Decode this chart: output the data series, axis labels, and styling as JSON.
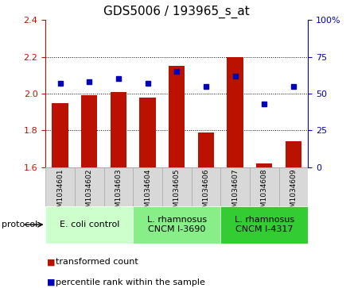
{
  "title": "GDS5006 / 193965_s_at",
  "samples": [
    "GSM1034601",
    "GSM1034602",
    "GSM1034603",
    "GSM1034604",
    "GSM1034605",
    "GSM1034606",
    "GSM1034607",
    "GSM1034608",
    "GSM1034609"
  ],
  "transformed_counts": [
    1.95,
    1.99,
    2.01,
    1.98,
    2.15,
    1.79,
    2.2,
    1.62,
    1.74
  ],
  "percentile_ranks": [
    57,
    58,
    60,
    57,
    65,
    55,
    62,
    43,
    55
  ],
  "ylim_left": [
    1.6,
    2.4
  ],
  "ylim_right": [
    0,
    100
  ],
  "yticks_left": [
    1.6,
    1.8,
    2.0,
    2.2,
    2.4
  ],
  "yticks_right": [
    0,
    25,
    50,
    75,
    100
  ],
  "ytick_labels_right": [
    "0",
    "25",
    "50",
    "75",
    "100%"
  ],
  "bar_color": "#bb1100",
  "dot_color": "#0000bb",
  "bar_bottom": 1.6,
  "groups": [
    {
      "label": "E. coli control",
      "start": 0,
      "end": 3,
      "color": "#ccffcc"
    },
    {
      "label": "L. rhamnosus\nCNCM I-3690",
      "start": 3,
      "end": 6,
      "color": "#88ee88"
    },
    {
      "label": "L. rhamnosus\nCNCM I-4317",
      "start": 6,
      "end": 9,
      "color": "#33cc33"
    }
  ],
  "protocol_label": "protocol",
  "legend_items": [
    {
      "label": "transformed count",
      "color": "#bb1100"
    },
    {
      "label": "percentile rank within the sample",
      "color": "#0000bb"
    }
  ],
  "sample_box_color": "#d8d8d8",
  "sample_box_edge": "#aaaaaa",
  "title_fontsize": 11,
  "tick_fontsize": 8,
  "sample_fontsize": 6.5,
  "group_fontsize": 8,
  "legend_fontsize": 8,
  "bar_width": 0.55
}
